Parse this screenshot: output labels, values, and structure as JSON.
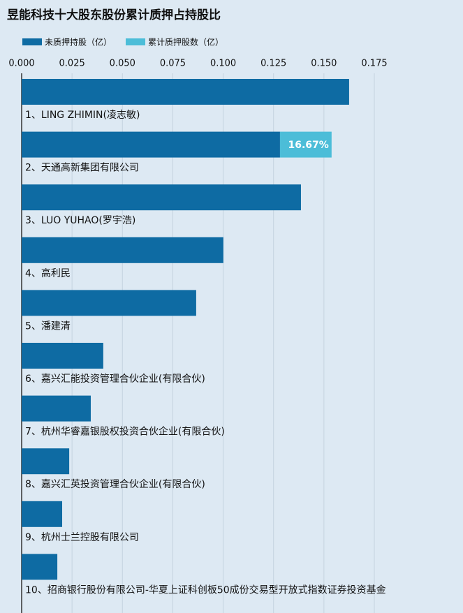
{
  "chart_data": {
    "type": "stacked_barh",
    "title": "昱能科技十大股东股份累计质押占持股比",
    "categories": [
      "1、LING ZHIMIN(凌志敏)",
      "2、天通高新集团有限公司",
      "3、LUO YUHAO(罗宇浩)",
      "4、高利民",
      "5、潘建清",
      "6、嘉兴汇能投资管理合伙企业(有限合伙)",
      "7、杭州华睿嘉银股权投资合伙企业(有限合伙)",
      "8、嘉兴汇英投资管理合伙企业(有限合伙)",
      "9、杭州士兰控股有限公司",
      "10、招商银行股份有限公司-华夏上证科创板50成份交易型开放式指数证券投资基金"
    ],
    "series": [
      {
        "name": "未质押持股（亿）",
        "color": "#0e6ba3",
        "values": [
          0.1625,
          0.1282,
          0.1386,
          0.1001,
          0.0866,
          0.0405,
          0.0343,
          0.0236,
          0.0201,
          0.0177
        ]
      },
      {
        "name": "累计质押股数（亿）",
        "color": "#4cbdd8",
        "values": [
          null,
          0.0256,
          null,
          null,
          null,
          null,
          null,
          null,
          null,
          null
        ]
      }
    ],
    "annotations": [
      {
        "category": "2、天通高新集团有限公司",
        "text": "16.67%"
      }
    ],
    "xlim": [
      0,
      0.175
    ],
    "xticks": [
      {
        "value": 0,
        "label": "0.000"
      },
      {
        "value": 0.025,
        "label": "0.025"
      },
      {
        "value": 0.05,
        "label": "0.050"
      },
      {
        "value": 0.075,
        "label": "0.075"
      },
      {
        "value": 0.1,
        "label": "0.100"
      },
      {
        "value": 0.125,
        "label": "0.125"
      },
      {
        "value": 0.15,
        "label": "0.150"
      },
      {
        "value": 0.175,
        "label": "0.175"
      }
    ],
    "grid": true,
    "legend": "top-left"
  }
}
